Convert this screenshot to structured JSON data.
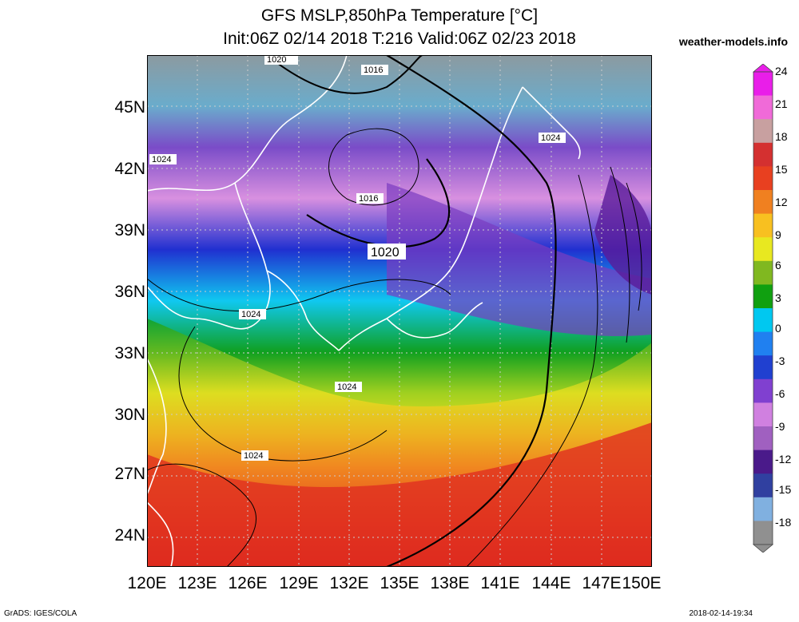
{
  "header": {
    "title_line1": "GFS MSLP,850hPa Temperature [°C]",
    "title_line2": "Init:06Z 02/14 2018 T:216 Valid:06Z 02/23 2018",
    "site": "weather-models.info"
  },
  "map": {
    "lat_labels": [
      "45N",
      "42N",
      "39N",
      "36N",
      "33N",
      "30N",
      "27N",
      "24N"
    ],
    "lon_labels": [
      "120E",
      "123E",
      "126E",
      "129E",
      "132E",
      "135E",
      "138E",
      "141E",
      "144E",
      "147E",
      "150E"
    ],
    "isobar_labels": [
      "1020",
      "1016",
      "1024",
      "1016",
      "1020",
      "1024",
      "1024",
      "1024",
      "1024"
    ],
    "colors": {
      "land_outline": "#ffffff",
      "isobar": "#000000",
      "grid": "#cccccc"
    }
  },
  "colorbar": {
    "labels": [
      "24",
      "21",
      "18",
      "15",
      "12",
      "9",
      "6",
      "3",
      "0",
      "-3",
      "-6",
      "-9",
      "-12",
      "-15",
      "-18"
    ],
    "stops": [
      "#e91ee9",
      "#f06ad8",
      "#c8a0a0",
      "#d43030",
      "#e84020",
      "#f08020",
      "#f8c020",
      "#e8e820",
      "#80b820",
      "#10a010",
      "#00c8f0",
      "#2080f0",
      "#2040d0",
      "#8040d0",
      "#d080e0",
      "#a060c0",
      "#4a1a8a",
      "#3040a0",
      "#80b0e0",
      "#909090"
    ]
  },
  "footer": {
    "left": "GrADS: IGES/COLA",
    "right": "2018-02-14-19:34"
  }
}
